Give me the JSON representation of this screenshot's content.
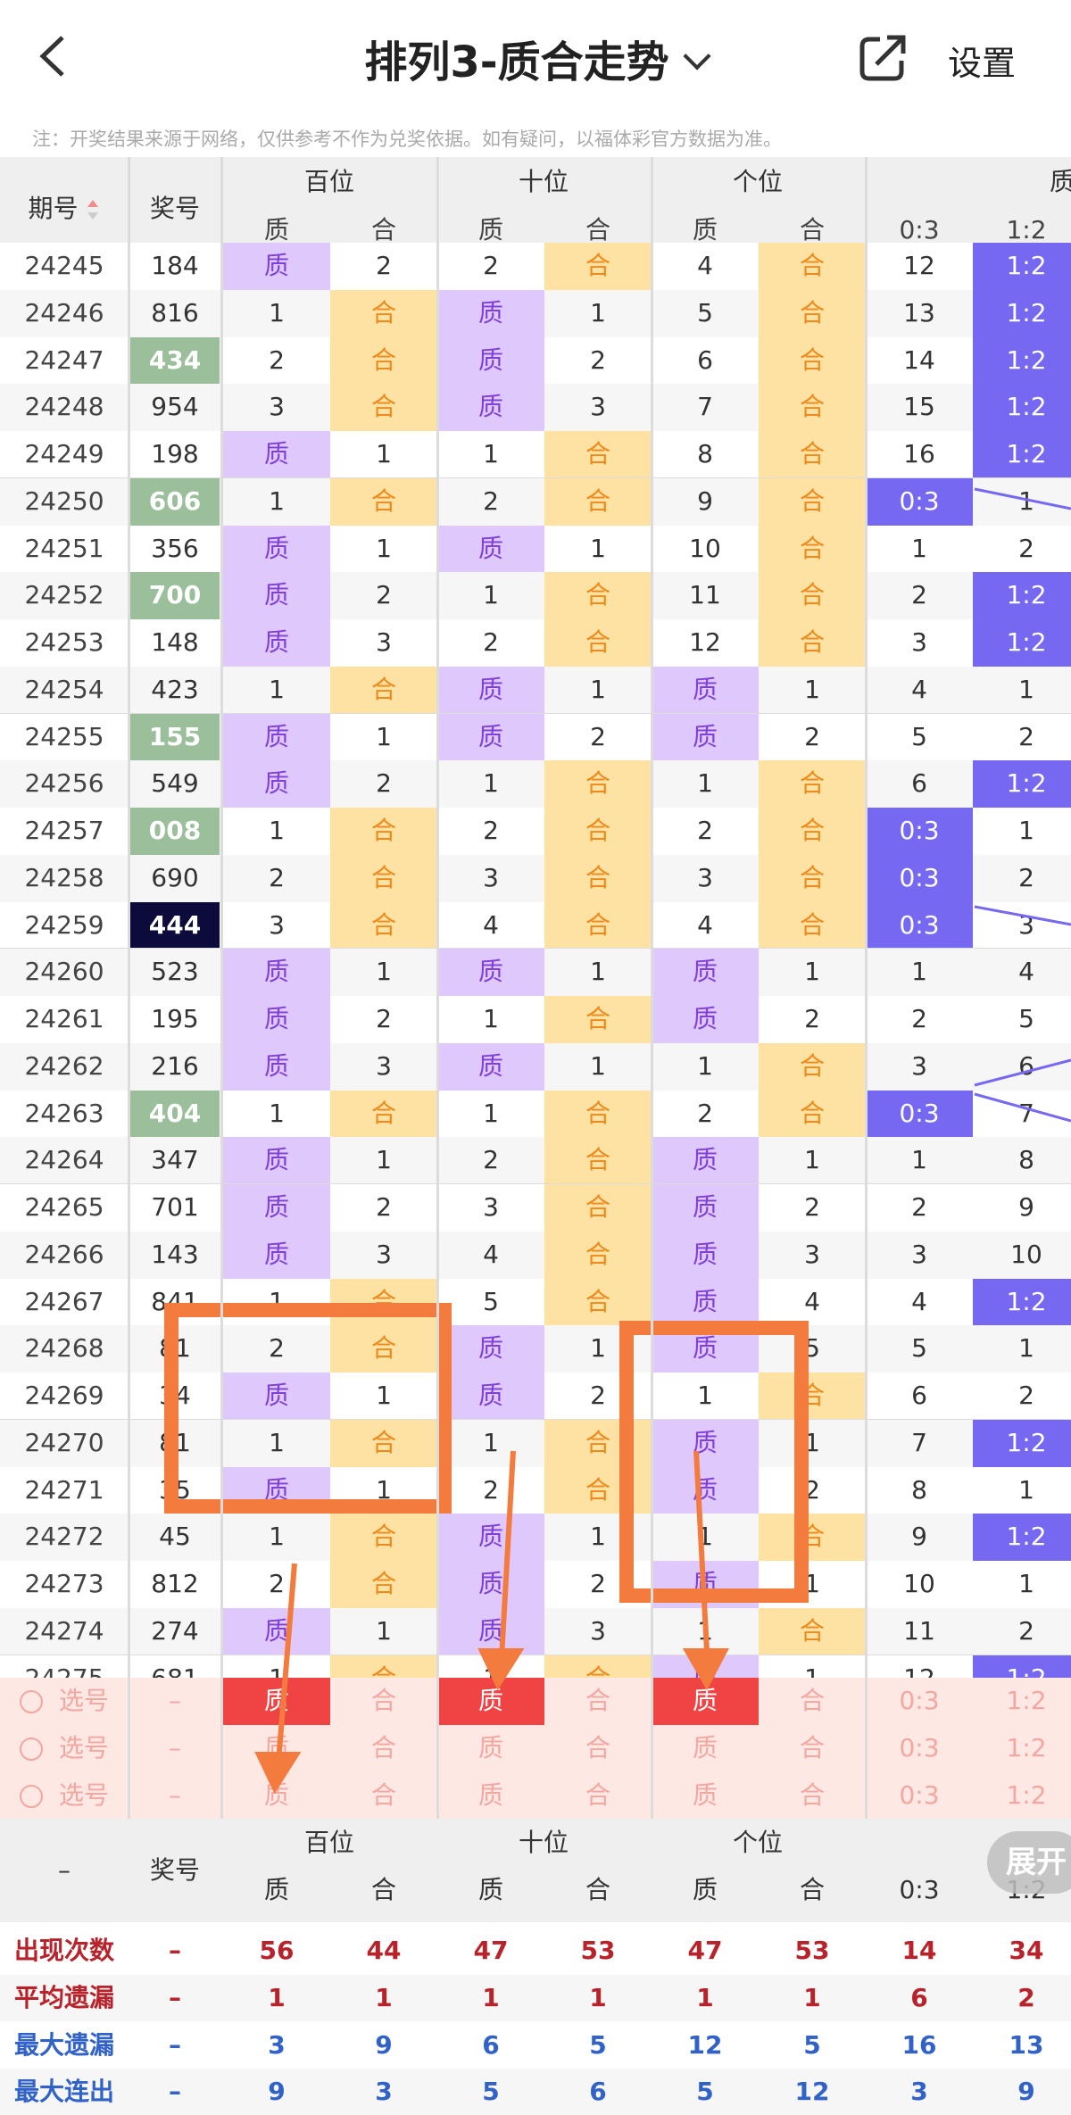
{
  "header": {
    "title": "排列3-质合走势",
    "settings": "设置",
    "note": "注：开奖结果来源于网络，仅供参考不作为兑奖依据。如有疑问，以福体彩官方数据为准。"
  },
  "columns": {
    "issue": "期号",
    "award": "奖号",
    "hundreds": "百位",
    "tens": "十位",
    "units": "个位",
    "ratio": "质",
    "prime": "质",
    "composite": "合",
    "r03": "0:3",
    "r12": "1:2"
  },
  "rows": [
    {
      "issue": "24245",
      "num": "184",
      "h": [
        "质",
        "2"
      ],
      "t": [
        "2",
        "合"
      ],
      "u": [
        "4",
        "合"
      ],
      "r": [
        "12",
        "1:2"
      ]
    },
    {
      "issue": "24246",
      "num": "816",
      "h": [
        "1",
        "合"
      ],
      "t": [
        "质",
        "1"
      ],
      "u": [
        "5",
        "合"
      ],
      "r": [
        "13",
        "1:2"
      ]
    },
    {
      "issue": "24247",
      "num": "434",
      "hl": "green",
      "h": [
        "2",
        "合"
      ],
      "t": [
        "质",
        "2"
      ],
      "u": [
        "6",
        "合"
      ],
      "r": [
        "14",
        "1:2"
      ]
    },
    {
      "issue": "24248",
      "num": "954",
      "h": [
        "3",
        "合"
      ],
      "t": [
        "质",
        "3"
      ],
      "u": [
        "7",
        "合"
      ],
      "r": [
        "15",
        "1:2"
      ]
    },
    {
      "issue": "24249",
      "num": "198",
      "h": [
        "质",
        "1"
      ],
      "t": [
        "1",
        "合"
      ],
      "u": [
        "8",
        "合"
      ],
      "r": [
        "16",
        "1:2"
      ]
    },
    {
      "issue": "24250",
      "num": "606",
      "hl": "green",
      "h": [
        "1",
        "合"
      ],
      "t": [
        "2",
        "合"
      ],
      "u": [
        "9",
        "合"
      ],
      "r": [
        "0:3",
        "1"
      ]
    },
    {
      "issue": "24251",
      "num": "356",
      "h": [
        "质",
        "1"
      ],
      "t": [
        "质",
        "1"
      ],
      "u": [
        "10",
        "合"
      ],
      "r": [
        "1",
        "2"
      ]
    },
    {
      "issue": "24252",
      "num": "700",
      "hl": "green",
      "h": [
        "质",
        "2"
      ],
      "t": [
        "1",
        "合"
      ],
      "u": [
        "11",
        "合"
      ],
      "r": [
        "2",
        "1:2"
      ]
    },
    {
      "issue": "24253",
      "num": "148",
      "h": [
        "质",
        "3"
      ],
      "t": [
        "2",
        "合"
      ],
      "u": [
        "12",
        "合"
      ],
      "r": [
        "3",
        "1:2"
      ]
    },
    {
      "issue": "24254",
      "num": "423",
      "h": [
        "1",
        "合"
      ],
      "t": [
        "质",
        "1"
      ],
      "u": [
        "质",
        "1"
      ],
      "r": [
        "4",
        "1"
      ]
    },
    {
      "issue": "24255",
      "num": "155",
      "hl": "green",
      "h": [
        "质",
        "1"
      ],
      "t": [
        "质",
        "2"
      ],
      "u": [
        "质",
        "2"
      ],
      "r": [
        "5",
        "2"
      ]
    },
    {
      "issue": "24256",
      "num": "549",
      "h": [
        "质",
        "2"
      ],
      "t": [
        "1",
        "合"
      ],
      "u": [
        "1",
        "合"
      ],
      "r": [
        "6",
        "1:2"
      ]
    },
    {
      "issue": "24257",
      "num": "008",
      "hl": "green",
      "h": [
        "1",
        "合"
      ],
      "t": [
        "2",
        "合"
      ],
      "u": [
        "2",
        "合"
      ],
      "r": [
        "0:3",
        "1"
      ]
    },
    {
      "issue": "24258",
      "num": "690",
      "h": [
        "2",
        "合"
      ],
      "t": [
        "3",
        "合"
      ],
      "u": [
        "3",
        "合"
      ],
      "r": [
        "0:3",
        "2"
      ]
    },
    {
      "issue": "24259",
      "num": "444",
      "hl": "navy",
      "h": [
        "3",
        "合"
      ],
      "t": [
        "4",
        "合"
      ],
      "u": [
        "4",
        "合"
      ],
      "r": [
        "0:3",
        "3"
      ]
    },
    {
      "issue": "24260",
      "num": "523",
      "h": [
        "质",
        "1"
      ],
      "t": [
        "质",
        "1"
      ],
      "u": [
        "质",
        "1"
      ],
      "r": [
        "1",
        "4"
      ]
    },
    {
      "issue": "24261",
      "num": "195",
      "h": [
        "质",
        "2"
      ],
      "t": [
        "1",
        "合"
      ],
      "u": [
        "质",
        "2"
      ],
      "r": [
        "2",
        "5"
      ]
    },
    {
      "issue": "24262",
      "num": "216",
      "h": [
        "质",
        "3"
      ],
      "t": [
        "质",
        "1"
      ],
      "u": [
        "1",
        "合"
      ],
      "r": [
        "3",
        "6"
      ]
    },
    {
      "issue": "24263",
      "num": "404",
      "hl": "green",
      "h": [
        "1",
        "合"
      ],
      "t": [
        "1",
        "合"
      ],
      "u": [
        "2",
        "合"
      ],
      "r": [
        "0:3",
        "7"
      ]
    },
    {
      "issue": "24264",
      "num": "347",
      "h": [
        "质",
        "1"
      ],
      "t": [
        "2",
        "合"
      ],
      "u": [
        "质",
        "1"
      ],
      "r": [
        "1",
        "8"
      ]
    },
    {
      "issue": "24265",
      "num": "701",
      "h": [
        "质",
        "2"
      ],
      "t": [
        "3",
        "合"
      ],
      "u": [
        "质",
        "2"
      ],
      "r": [
        "2",
        "9"
      ]
    },
    {
      "issue": "24266",
      "num": "143",
      "h": [
        "质",
        "3"
      ],
      "t": [
        "4",
        "合"
      ],
      "u": [
        "质",
        "3"
      ],
      "r": [
        "3",
        "10"
      ]
    },
    {
      "issue": "24267",
      "num": "841",
      "h": [
        "1",
        "合"
      ],
      "t": [
        "5",
        "合"
      ],
      "u": [
        "质",
        "4"
      ],
      "r": [
        "4",
        "1:2"
      ]
    },
    {
      "issue": "24268",
      "num": "8‍1",
      "h": [
        "2",
        "合"
      ],
      "t": [
        "质",
        "1"
      ],
      "u": [
        "质",
        "5"
      ],
      "r": [
        "5",
        "1"
      ]
    },
    {
      "issue": "24269",
      "num": "3‍4",
      "h": [
        "质",
        "1"
      ],
      "t": [
        "质",
        "2"
      ],
      "u": [
        "1",
        "合"
      ],
      "r": [
        "6",
        "2"
      ]
    },
    {
      "issue": "24270",
      "num": "8‍1",
      "h": [
        "1",
        "合"
      ],
      "t": [
        "1",
        "合"
      ],
      "u": [
        "质",
        "1"
      ],
      "r": [
        "7",
        "1:2"
      ]
    },
    {
      "issue": "24271",
      "num": "3‍5",
      "h": [
        "质",
        "1"
      ],
      "t": [
        "2",
        "合"
      ],
      "u": [
        "质",
        "2"
      ],
      "r": [
        "8",
        "1"
      ]
    },
    {
      "issue": "24272",
      "num": "45‍",
      "h": [
        "1",
        "合"
      ],
      "t": [
        "质",
        "1"
      ],
      "u": [
        "1",
        "合"
      ],
      "r": [
        "9",
        "1:2"
      ]
    },
    {
      "issue": "24273",
      "num": "812",
      "h": [
        "2",
        "合"
      ],
      "t": [
        "质",
        "2"
      ],
      "u": [
        "质",
        "1"
      ],
      "r": [
        "10",
        "1"
      ]
    },
    {
      "issue": "24274",
      "num": "274",
      "h": [
        "质",
        "1"
      ],
      "t": [
        "质",
        "3"
      ],
      "u": [
        "1",
        "合"
      ],
      "r": [
        "11",
        "2"
      ]
    },
    {
      "issue": "24275",
      "num": "681",
      "h": [
        "1",
        "合"
      ],
      "t": [
        "1",
        "合"
      ],
      "u": [
        "质",
        "1"
      ],
      "r": [
        "12",
        "1:2"
      ]
    }
  ],
  "picks": [
    {
      "label": "选号",
      "dash": "–",
      "h": [
        "质",
        "合"
      ],
      "t": [
        "质",
        "合"
      ],
      "u": [
        "质",
        "合"
      ],
      "r": [
        "0:3",
        "1:2"
      ]
    },
    {
      "label": "选号",
      "dash": "–",
      "h": [
        "质",
        "合"
      ],
      "t": [
        "质",
        "合"
      ],
      "u": [
        "质",
        "合"
      ],
      "r": [
        "0:3",
        "1:2"
      ]
    },
    {
      "label": "选号",
      "dash": "–",
      "h": [
        "质",
        "合"
      ],
      "t": [
        "质",
        "合"
      ],
      "u": [
        "质",
        "合"
      ],
      "r": [
        "0:3",
        "1:2"
      ]
    }
  ],
  "footer": {
    "dash": "–",
    "award": "奖号",
    "hundreds": "百位",
    "tens": "十位",
    "units": "个位",
    "expand": "展开",
    "sub": [
      "质",
      "合",
      "质",
      "合",
      "质",
      "合",
      "0:3",
      "1:2"
    ],
    "stats": [
      {
        "label": "出现次数",
        "color": "#b8232b",
        "dash": "–",
        "values": [
          "56",
          "44",
          "47",
          "53",
          "47",
          "53",
          "14",
          "34"
        ]
      },
      {
        "label": "平均遗漏",
        "color": "#b8232b",
        "dash": "–",
        "values": [
          "1",
          "1",
          "1",
          "1",
          "1",
          "1",
          "6",
          "2"
        ]
      },
      {
        "label": "最大遗漏",
        "color": "#3162c7",
        "dash": "–",
        "values": [
          "3",
          "9",
          "6",
          "5",
          "12",
          "5",
          "16",
          "13"
        ]
      },
      {
        "label": "最大连出",
        "color": "#3162c7",
        "dash": "–",
        "values": [
          "9",
          "3",
          "5",
          "6",
          "5",
          "12",
          "3",
          "9"
        ]
      }
    ]
  },
  "colors": {
    "prime": "#dfc8fb",
    "composite": "#fde2a3",
    "ratio": "#7668f0",
    "annotation": "#f47b3e",
    "pickRed": "#f04444"
  }
}
